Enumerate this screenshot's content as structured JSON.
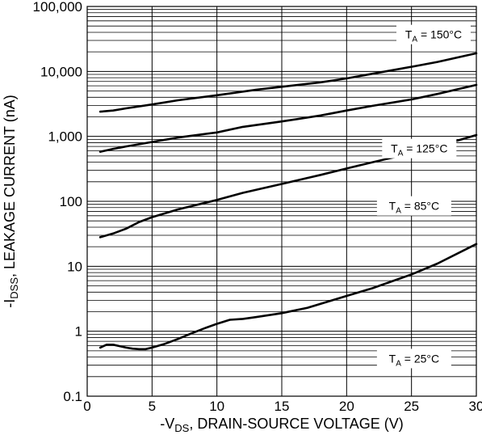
{
  "chart_data": {
    "type": "line",
    "xlabel": "-V_DS, DRAIN-SOURCE VOLTAGE (V)",
    "ylabel": "-I_DSS, LEAKAGE CURRENT (nA)",
    "xlabel_parts": {
      "pre": "-V",
      "sub": "DS",
      "post": ", DRAIN-SOURCE VOLTAGE (V)"
    },
    "ylabel_parts": {
      "pre": "-I",
      "sub": "DSS",
      "post": ", LEAKAGE CURRENT (nA)"
    },
    "xlim": [
      0,
      30
    ],
    "ylim": [
      0.1,
      100000
    ],
    "yscale": "log",
    "grid": true,
    "x_ticks": [
      0,
      5,
      10,
      15,
      20,
      25,
      30
    ],
    "x_tick_labels": [
      "0",
      "5",
      "10",
      "15",
      "20",
      "25",
      "30"
    ],
    "y_ticks": [
      0.1,
      1,
      10,
      100,
      1000,
      10000,
      100000
    ],
    "y_tick_labels": [
      "0.1",
      "1",
      "10",
      "100",
      "1,000",
      "10,000",
      "100,000"
    ],
    "series": [
      {
        "name": "T_A = 150°C",
        "label_parts": {
          "pre": "T",
          "sub": "A",
          "post": " = 150°C"
        },
        "label_anchor": [
          26.7,
          37000
        ],
        "x": [
          1,
          2,
          3,
          5,
          7,
          10,
          13,
          15,
          18,
          20,
          22,
          25,
          27,
          30
        ],
        "y": [
          2400,
          2500,
          2700,
          3100,
          3600,
          4300,
          5200,
          5800,
          6800,
          7800,
          9200,
          11800,
          14000,
          19000
        ]
      },
      {
        "name": "T_A = 125°C",
        "label_parts": {
          "pre": "T",
          "sub": "A",
          "post": " = 125°C"
        },
        "label_anchor": [
          25.6,
          650
        ],
        "x": [
          1,
          2,
          3,
          5,
          7,
          10,
          12,
          15,
          18,
          20,
          22,
          25,
          27,
          30
        ],
        "y": [
          580,
          640,
          700,
          820,
          960,
          1150,
          1400,
          1700,
          2100,
          2500,
          2950,
          3700,
          4500,
          6200
        ]
      },
      {
        "name": "T_A = 85°C",
        "label_parts": {
          "pre": "T",
          "sub": "A",
          "post": " = 85°C"
        },
        "label_anchor": [
          25.2,
          85
        ],
        "x": [
          1,
          2,
          3,
          4,
          5,
          7,
          9,
          10,
          12,
          15,
          18,
          20,
          22,
          25,
          27,
          30
        ],
        "y": [
          28,
          32,
          38,
          48,
          57,
          75,
          94,
          105,
          135,
          185,
          255,
          320,
          400,
          550,
          700,
          1050
        ]
      },
      {
        "name": "T_A = 25°C",
        "label_parts": {
          "pre": "T",
          "sub": "A",
          "post": " = 25°C"
        },
        "label_anchor": [
          25.2,
          0.38
        ],
        "x": [
          1,
          1.5,
          2,
          2.5,
          3,
          3.5,
          4,
          4.5,
          5,
          6,
          7,
          8,
          9,
          10,
          11,
          12,
          13,
          15,
          17,
          20,
          22,
          25,
          27,
          30
        ],
        "y": [
          0.56,
          0.62,
          0.62,
          0.59,
          0.56,
          0.54,
          0.53,
          0.53,
          0.56,
          0.64,
          0.76,
          0.92,
          1.1,
          1.3,
          1.5,
          1.55,
          1.65,
          1.9,
          2.3,
          3.5,
          4.6,
          7.5,
          11,
          22
        ]
      }
    ]
  }
}
